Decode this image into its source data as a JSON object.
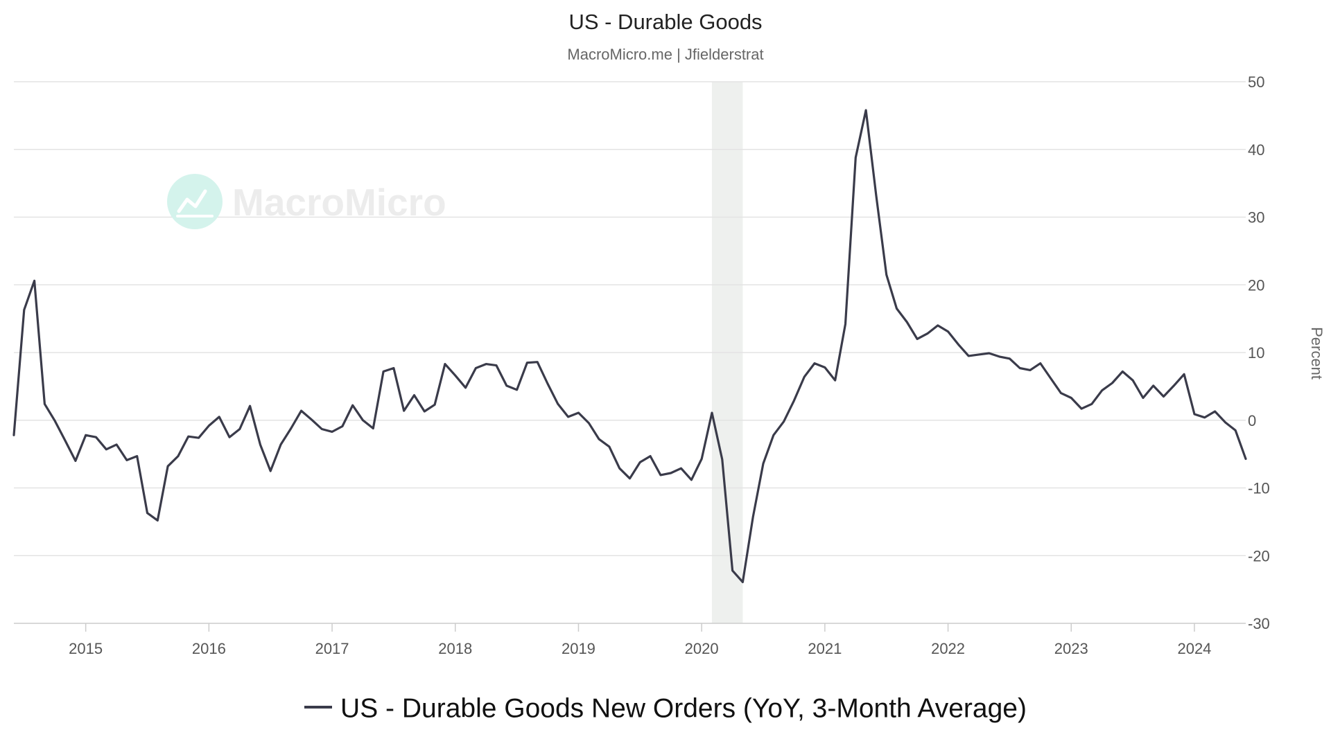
{
  "chart_data": {
    "type": "line",
    "title": "US - Durable Goods",
    "subtitle": "MacroMicro.me | Jfielderstrat",
    "ylabel": "Percent",
    "ylim": [
      -30,
      50
    ],
    "yticks": [
      50,
      40,
      30,
      20,
      10,
      0,
      -10,
      -20,
      -30
    ],
    "xlim": [
      "2014-06",
      "2024-06"
    ],
    "xticks": [
      "2015",
      "2016",
      "2017",
      "2018",
      "2019",
      "2020",
      "2021",
      "2022",
      "2023",
      "2024"
    ],
    "grid": true,
    "legend_position": "bottom",
    "recession_shading": {
      "start": "2020-02",
      "end": "2020-04"
    },
    "watermark": "MacroMicro",
    "colors": {
      "line": "#3a3b4a",
      "grid": "#e3e3e3",
      "shade": "#eef0ee",
      "watermark_icon": "#d4f3ec",
      "watermark_text": "#ececec"
    },
    "series": [
      {
        "name": "US - Durable Goods New Orders (YoY, 3-Month Average)",
        "x": [
          "2014-06",
          "2014-07",
          "2014-08",
          "2014-09",
          "2014-10",
          "2014-11",
          "2014-12",
          "2015-01",
          "2015-02",
          "2015-03",
          "2015-04",
          "2015-05",
          "2015-06",
          "2015-07",
          "2015-08",
          "2015-09",
          "2015-10",
          "2015-11",
          "2015-12",
          "2016-01",
          "2016-02",
          "2016-03",
          "2016-04",
          "2016-05",
          "2016-06",
          "2016-07",
          "2016-08",
          "2016-09",
          "2016-10",
          "2016-11",
          "2016-12",
          "2017-01",
          "2017-02",
          "2017-03",
          "2017-04",
          "2017-05",
          "2017-06",
          "2017-07",
          "2017-08",
          "2017-09",
          "2017-10",
          "2017-11",
          "2017-12",
          "2018-01",
          "2018-02",
          "2018-03",
          "2018-04",
          "2018-05",
          "2018-06",
          "2018-07",
          "2018-08",
          "2018-09",
          "2018-10",
          "2018-11",
          "2018-12",
          "2019-01",
          "2019-02",
          "2019-03",
          "2019-04",
          "2019-05",
          "2019-06",
          "2019-07",
          "2019-08",
          "2019-09",
          "2019-10",
          "2019-11",
          "2019-12",
          "2020-01",
          "2020-02",
          "2020-03",
          "2020-04",
          "2020-05",
          "2020-06",
          "2020-07",
          "2020-08",
          "2020-09",
          "2020-10",
          "2020-11",
          "2020-12",
          "2021-01",
          "2021-02",
          "2021-03",
          "2021-04",
          "2021-05",
          "2021-06",
          "2021-07",
          "2021-08",
          "2021-09",
          "2021-10",
          "2021-11",
          "2021-12",
          "2022-01",
          "2022-02",
          "2022-03",
          "2022-04",
          "2022-05",
          "2022-06",
          "2022-07",
          "2022-08",
          "2022-09",
          "2022-10",
          "2022-11",
          "2022-12",
          "2023-01",
          "2023-02",
          "2023-03",
          "2023-04",
          "2023-05",
          "2023-06",
          "2023-07",
          "2023-08",
          "2023-09",
          "2023-10",
          "2023-11",
          "2023-12",
          "2024-01",
          "2024-02",
          "2024-03",
          "2024-04",
          "2024-05",
          "2024-06"
        ],
        "values": [
          -2.2,
          16.3,
          20.6,
          2.4,
          -0.1,
          -3.0,
          -6.0,
          -2.2,
          -2.5,
          -4.3,
          -3.6,
          -5.9,
          -5.3,
          -13.7,
          -14.8,
          -6.8,
          -5.3,
          -2.4,
          -2.6,
          -0.8,
          0.5,
          -2.5,
          -1.3,
          2.1,
          -3.6,
          -7.5,
          -3.6,
          -1.2,
          1.4,
          0.1,
          -1.3,
          -1.7,
          -0.9,
          2.2,
          0.0,
          -1.2,
          7.2,
          7.7,
          1.4,
          3.7,
          1.3,
          2.3,
          8.3,
          6.6,
          4.8,
          7.7,
          8.3,
          8.1,
          5.1,
          4.5,
          8.5,
          8.6,
          5.4,
          2.4,
          0.5,
          1.1,
          -0.4,
          -2.8,
          -3.9,
          -7.1,
          -8.6,
          -6.2,
          -5.3,
          -8.1,
          -7.8,
          -7.1,
          -8.8,
          -5.7,
          1.1,
          -5.8,
          -22.2,
          -23.9,
          -14.3,
          -6.4,
          -2.2,
          -0.2,
          2.9,
          6.4,
          8.4,
          7.8,
          5.9,
          14.2,
          38.8,
          45.8,
          33.2,
          21.5,
          16.5,
          14.5,
          12.0,
          12.8,
          14.0,
          13.1,
          11.2,
          9.5,
          9.7,
          9.9,
          9.4,
          9.1,
          7.7,
          7.4,
          8.4,
          6.2,
          4.0,
          3.3,
          1.7,
          2.4,
          4.4,
          5.5,
          7.2,
          5.9,
          3.3,
          5.1,
          3.5,
          5.1,
          6.8,
          0.9,
          0.4,
          1.3,
          -0.3,
          -1.5,
          -5.7
        ]
      }
    ]
  }
}
